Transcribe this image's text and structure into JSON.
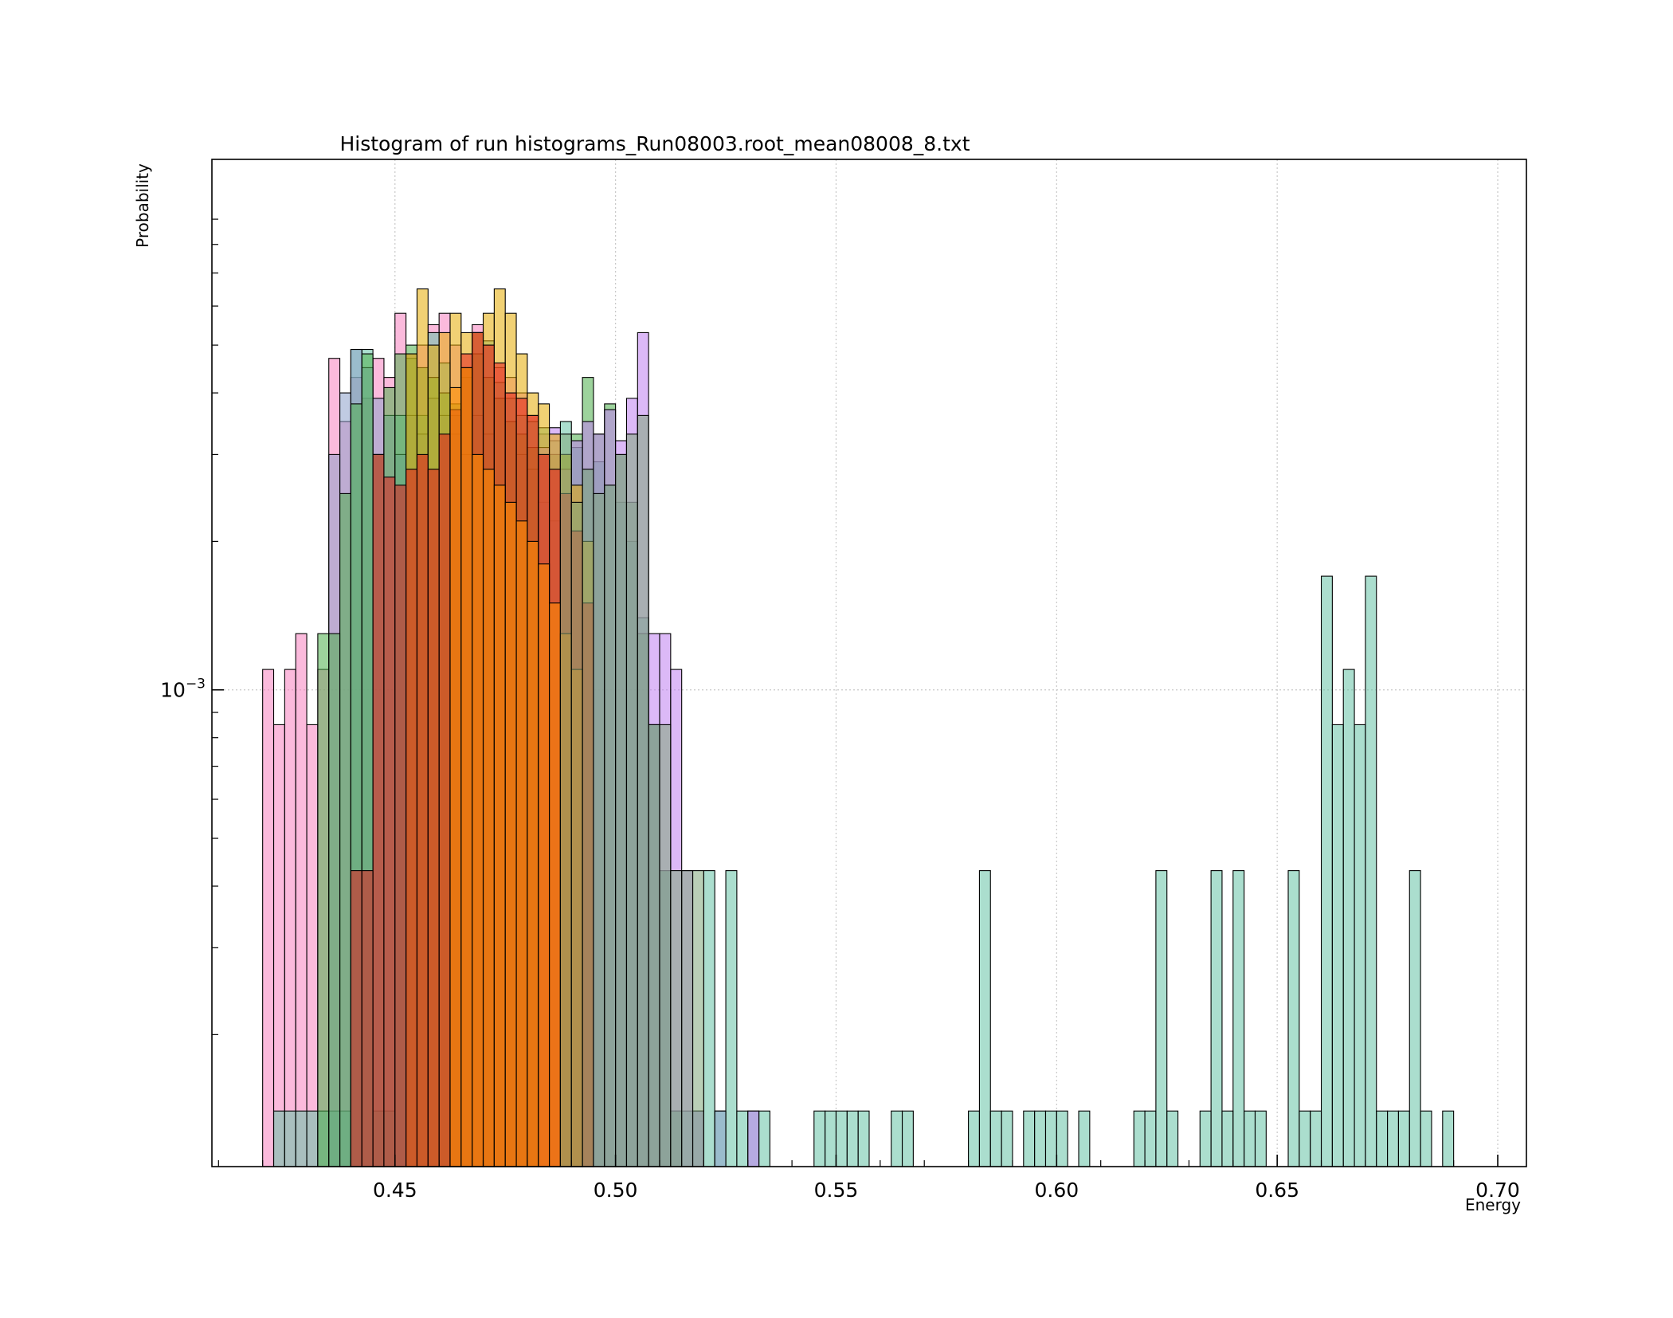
{
  "chart_data": {
    "type": "bar",
    "subtype": "overlaid histograms",
    "title": "Histogram of run histograms_Run08003.root_mean08008_8.txt",
    "xlabel": "Energy",
    "ylabel": "Probability",
    "xscale": "linear",
    "yscale": "log",
    "xlim": [
      0.4085,
      0.7065
    ],
    "ylim": [
      0.000108,
      0.0119
    ],
    "bin_width": 0.0025,
    "x_ticks": [
      0.45,
      0.5,
      0.55,
      0.6,
      0.65,
      0.7
    ],
    "x_tick_labels": [
      "0.45",
      "0.50",
      "0.55",
      "0.60",
      "0.65",
      "0.70"
    ],
    "y_ticks": [
      0.001
    ],
    "y_tick_labels_base": "10",
    "y_tick_labels_exp": "−3",
    "grid": true,
    "legend": "none",
    "series": [
      {
        "color": "#F781BF",
        "x": [
          0.42,
          0.4225,
          0.425,
          0.4275,
          0.43,
          0.4325,
          0.435,
          0.4375,
          0.44,
          0.4425,
          0.445,
          0.4475,
          0.45,
          0.4525,
          0.455,
          0.4575,
          0.46,
          0.4625,
          0.465,
          0.4675,
          0.47,
          0.4725,
          0.475,
          0.4775,
          0.48,
          0.4825,
          0.485
        ],
        "values": [
          0.0011,
          0.00085,
          0.0011,
          0.0013,
          0.00085,
          0.0011,
          0.0047,
          0.0035,
          0.0043,
          0.0039,
          0.0047,
          0.0043,
          0.0058,
          0.0048,
          0.005,
          0.0055,
          0.0058,
          0.005,
          0.0045,
          0.0055,
          0.005,
          0.0045,
          0.0043,
          0.004,
          0.0036,
          0.0033,
          0.003
        ]
      },
      {
        "color": "#66C2A5",
        "x": [
          0.4225,
          0.425,
          0.4275,
          0.43,
          0.4325,
          0.435,
          0.4375,
          0.44,
          0.4425,
          0.445,
          0.4475,
          0.45,
          0.4525,
          0.455,
          0.4575,
          0.46,
          0.4625,
          0.465,
          0.4675,
          0.47,
          0.4725,
          0.475,
          0.4775,
          0.48,
          0.4825,
          0.485,
          0.4875,
          0.49,
          0.4925,
          0.495,
          0.4975,
          0.5,
          0.5025,
          0.505,
          0.5075,
          0.51,
          0.5125,
          0.515,
          0.5175,
          0.52,
          0.5225,
          0.525,
          0.5275,
          0.53,
          0.5325,
          0.545,
          0.5475,
          0.55,
          0.5525,
          0.555,
          0.5625,
          0.565,
          0.58,
          0.5825,
          0.585,
          0.5875,
          0.5925,
          0.595,
          0.5975,
          0.6,
          0.605,
          0.6175,
          0.62,
          0.6225,
          0.625,
          0.6325,
          0.635,
          0.6375,
          0.64,
          0.6425,
          0.645,
          0.6525,
          0.655,
          0.6575,
          0.66,
          0.6625,
          0.665,
          0.6675,
          0.67,
          0.6725,
          0.675,
          0.6775,
          0.68,
          0.6825,
          0.6875
        ],
        "values": [
          0.00014,
          0.00014,
          0.00014,
          0.00014,
          0.00014,
          0.00014,
          0.00014,
          0.0049,
          0.0049,
          0.00014,
          0.00014,
          0.0036,
          0.0047,
          0.0036,
          0.0053,
          0.0046,
          0.0036,
          0.0043,
          0.0053,
          0.0051,
          0.0042,
          0.0039,
          0.0036,
          0.0035,
          0.0034,
          0.0032,
          0.0035,
          0.0031,
          0.0028,
          0.0029,
          0.0026,
          0.0024,
          0.002,
          0.0014,
          0.00085,
          0.00043,
          0.00014,
          0.00014,
          0.00014,
          0.00043,
          0.00014,
          0.00043,
          0.00014,
          0.00014,
          0.00014,
          0.00014,
          0.00014,
          0.00014,
          0.00014,
          0.00014,
          0.00014,
          0.00014,
          0.00014,
          0.00043,
          0.00014,
          0.00014,
          0.00014,
          0.00014,
          0.00014,
          0.00014,
          0.00014,
          0.00014,
          0.00014,
          0.00043,
          0.00014,
          0.00014,
          0.00043,
          0.00014,
          0.00043,
          0.00014,
          0.00014,
          0.00043,
          0.00014,
          0.00014,
          0.0017,
          0.00085,
          0.0011,
          0.00085,
          0.0017,
          0.00014,
          0.00014,
          0.00014,
          0.00043,
          0.00014,
          0.00014
        ]
      },
      {
        "color": "#8DA0CB",
        "x": [
          0.435,
          0.4375,
          0.44,
          0.4425,
          0.445,
          0.4475,
          0.45,
          0.4525,
          0.455,
          0.4575,
          0.46,
          0.4625,
          0.465,
          0.4675,
          0.47,
          0.4725,
          0.475,
          0.4775,
          0.48,
          0.4825,
          0.485,
          0.5225
        ],
        "values": [
          0.003,
          0.004,
          0.0049,
          0.0045,
          0.0039,
          0.0036,
          0.003,
          0.0036,
          0.0033,
          0.0039,
          0.0036,
          0.0033,
          0.003,
          0.0036,
          0.0033,
          0.0039,
          0.0035,
          0.003,
          0.0028,
          0.0024,
          0.0022,
          0.00014
        ]
      },
      {
        "color": "#4DAF4A",
        "x": [
          0.4325,
          0.435,
          0.4375,
          0.44,
          0.4425,
          0.445,
          0.4475,
          0.45,
          0.4525,
          0.455,
          0.4575,
          0.46,
          0.4625,
          0.465,
          0.4675,
          0.47,
          0.4725,
          0.475,
          0.4775,
          0.48,
          0.4825,
          0.485,
          0.4875,
          0.49,
          0.4925,
          0.495,
          0.4975,
          0.5,
          0.5025,
          0.505,
          0.5075,
          0.51,
          0.5125
        ],
        "values": [
          0.0013,
          0.0013,
          0.0025,
          0.0038,
          0.0048,
          0.003,
          0.0041,
          0.0048,
          0.005,
          0.0045,
          0.0043,
          0.004,
          0.0038,
          0.0045,
          0.0048,
          0.0043,
          0.0039,
          0.0035,
          0.0033,
          0.0031,
          0.003,
          0.003,
          0.003,
          0.0033,
          0.0043,
          0.0033,
          0.0038,
          0.003,
          0.0024,
          0.0013,
          0.00085,
          0.00043,
          0.00014
        ]
      },
      {
        "color": "#C080F0",
        "x": [
          0.4825,
          0.485,
          0.4875,
          0.49,
          0.4925,
          0.495,
          0.4975,
          0.5,
          0.5025,
          0.505,
          0.5075,
          0.51,
          0.5125,
          0.515,
          0.5175,
          0.53
        ],
        "values": [
          0.0031,
          0.0034,
          0.0028,
          0.0032,
          0.0035,
          0.0033,
          0.0037,
          0.0032,
          0.0039,
          0.0053,
          0.0013,
          0.0013,
          0.0011,
          0.00043,
          0.00014,
          0.00014
        ]
      },
      {
        "color": "#E6AB02",
        "x": [
          0.4525,
          0.455,
          0.4575,
          0.46,
          0.4625,
          0.465,
          0.4675,
          0.47,
          0.4725,
          0.475,
          0.4775,
          0.48,
          0.4825,
          0.485,
          0.4875,
          0.49,
          0.4925
        ],
        "values": [
          0.0048,
          0.0065,
          0.005,
          0.0053,
          0.0058,
          0.0053,
          0.0053,
          0.0058,
          0.0065,
          0.0058,
          0.0048,
          0.004,
          0.0038,
          0.0033,
          0.003,
          0.0026,
          0.002
        ]
      },
      {
        "color": "#E41A1C",
        "x": [
          0.44,
          0.4425,
          0.445,
          0.4475,
          0.45,
          0.4525,
          0.455,
          0.4575,
          0.46,
          0.4625,
          0.465,
          0.4675,
          0.47,
          0.4725,
          0.475,
          0.4775,
          0.48,
          0.4825,
          0.485,
          0.4875,
          0.49,
          0.4925
        ],
        "values": [
          0.00043,
          0.00043,
          0.003,
          0.0027,
          0.0026,
          0.0028,
          0.003,
          0.0028,
          0.0033,
          0.0037,
          0.0048,
          0.0053,
          0.005,
          0.0046,
          0.004,
          0.0039,
          0.0036,
          0.003,
          0.0028,
          0.0025,
          0.0021,
          0.0015
        ]
      },
      {
        "color": "#FF8C00",
        "x": [
          0.4625,
          0.465,
          0.4675,
          0.47,
          0.4725,
          0.475,
          0.4775,
          0.48,
          0.4825,
          0.485,
          0.4875,
          0.49
        ],
        "values": [
          0.0041,
          0.0045,
          0.003,
          0.0028,
          0.0026,
          0.0024,
          0.0022,
          0.002,
          0.0018,
          0.0015,
          0.0013,
          0.0011
        ]
      },
      {
        "color": "#7FA87A",
        "x": [
          0.4875,
          0.49,
          0.4925,
          0.495,
          0.4975,
          0.5,
          0.5025,
          0.505,
          0.5075,
          0.51,
          0.5125,
          0.515,
          0.5175
        ],
        "values": [
          0.0033,
          0.0024,
          0.0028,
          0.0025,
          0.0026,
          0.003,
          0.0033,
          0.0036,
          0.00085,
          0.00085,
          0.00043,
          0.00043,
          0.00043
        ]
      }
    ]
  }
}
